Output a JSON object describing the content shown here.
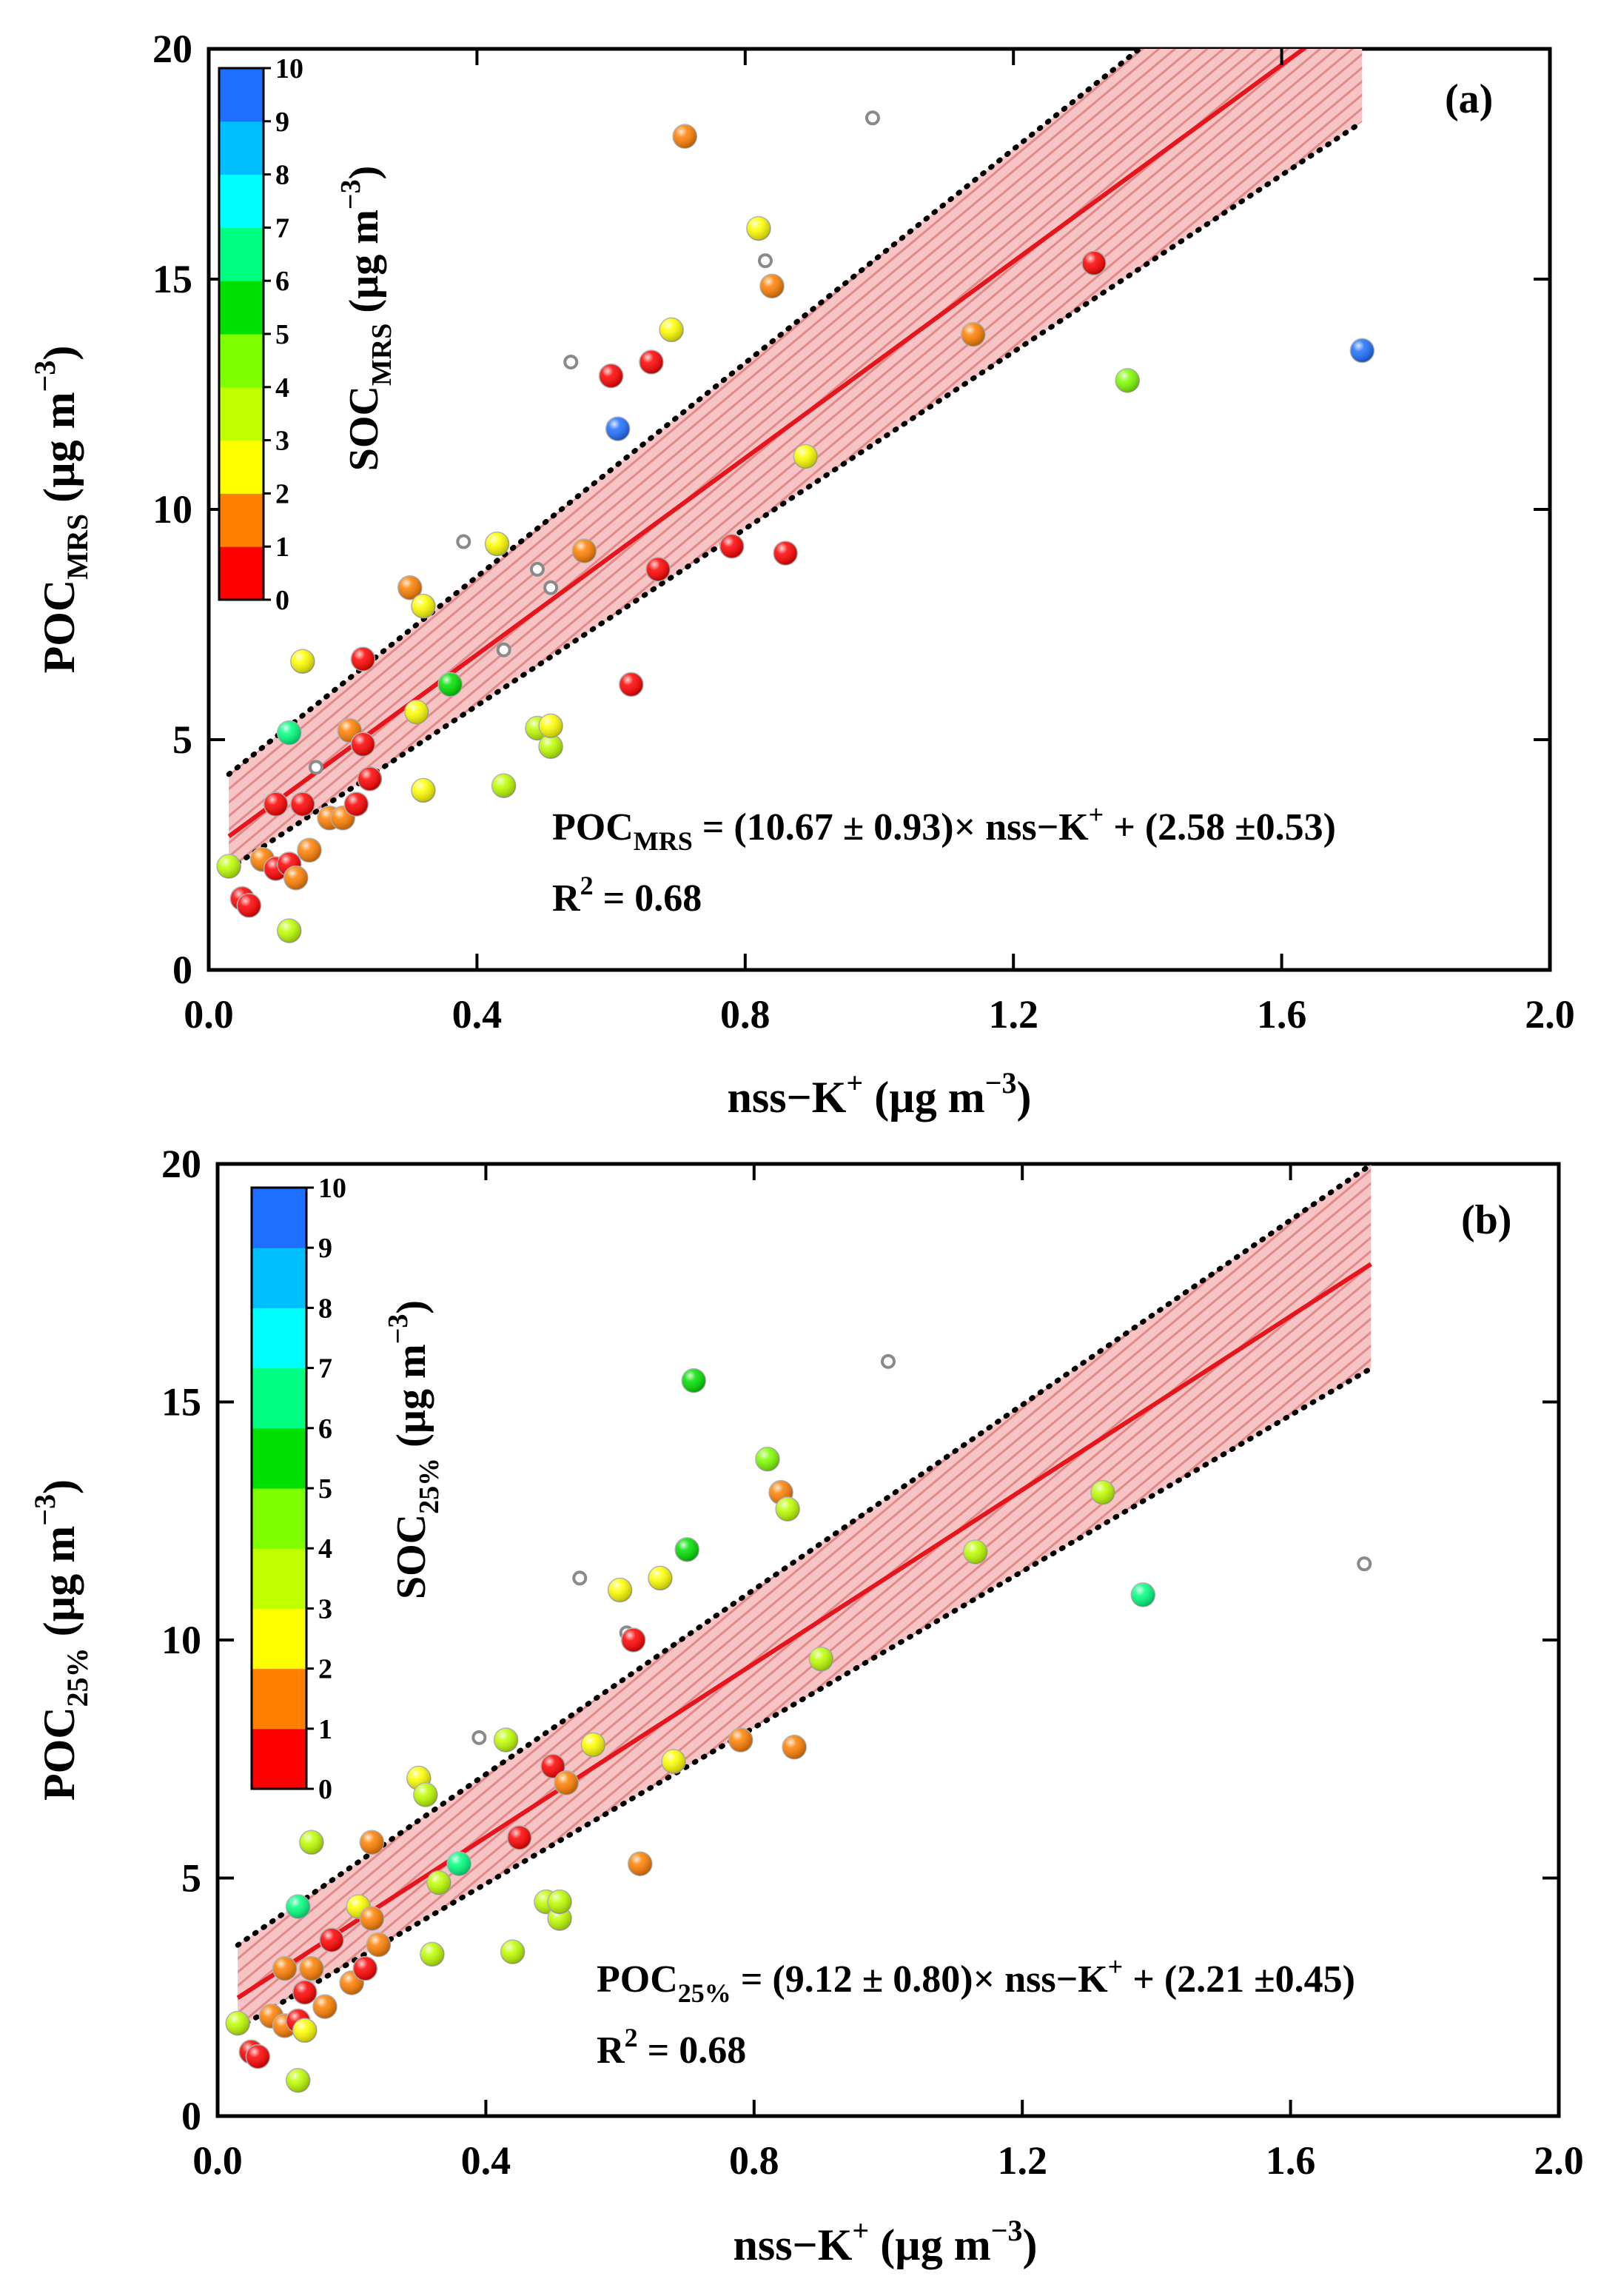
{
  "chart_data": [
    {
      "type": "scatter",
      "panel_label": "(a)",
      "title": "",
      "xlabel": "nss−K⁺ (µg m⁻³)",
      "xlabel_parts": {
        "main": "nss−K",
        "sup": "+",
        "unit": "(µg m",
        "unit_sup": "−3",
        "unit_end": ")"
      },
      "ylabel_parts": {
        "main": "POC",
        "sub": "MRS",
        "unit": "(µg m",
        "unit_sup": "−3",
        "unit_end": ")"
      },
      "xlim": [
        0,
        2.0
      ],
      "ylim": [
        0,
        20
      ],
      "xticks": [
        "0.0",
        "0.4",
        "0.8",
        "1.2",
        "1.6",
        "2.0"
      ],
      "yticks": [
        "0",
        "5",
        "10",
        "15",
        "20"
      ],
      "grid": false,
      "colorbar": {
        "label_main": "SOC",
        "label_sub": "MRS",
        "unit": "(µg m",
        "unit_sup": "−3",
        "unit_end": ")",
        "min": 0,
        "max": 10,
        "ticks": [
          "0",
          "1",
          "2",
          "3",
          "4",
          "5",
          "6",
          "7",
          "8",
          "9",
          "10"
        ],
        "colors": [
          "#ff0000",
          "#ff7f00",
          "#ffff00",
          "#bfff00",
          "#7fff00",
          "#00e000",
          "#00ff80",
          "#00ffff",
          "#00bfff",
          "#1e6fff",
          "#0000ff"
        ]
      },
      "fit": {
        "slope": 10.67,
        "intercept": 2.58,
        "x_range": [
          0.03,
          1.72
        ],
        "band_upper_intercept": 3.9,
        "band_upper_slope": 11.6,
        "band_lower_intercept": 1.9,
        "band_lower_slope": 9.6
      },
      "equation": {
        "lhs_main": "POC",
        "lhs_sub": "MRS",
        "rhs": " = (10.67 ± 0.93)× nss−K",
        "rhs_sup": "+",
        "rhs_end": " + (2.58 ±0.53)"
      },
      "r2": {
        "main": "R",
        "sup": "2",
        "rest": " = 0.68"
      },
      "points": [
        {
          "x": 0.03,
          "y": 2.25,
          "c": 3
        },
        {
          "x": 0.05,
          "y": 1.55,
          "c": 0.5
        },
        {
          "x": 0.06,
          "y": 1.4,
          "c": 0.5
        },
        {
          "x": 0.08,
          "y": 2.4,
          "c": 1
        },
        {
          "x": 0.1,
          "y": 2.2,
          "c": 0.5
        },
        {
          "x": 0.1,
          "y": 3.6,
          "c": 0.5
        },
        {
          "x": 0.12,
          "y": 2.3,
          "c": 0.5
        },
        {
          "x": 0.13,
          "y": 2.0,
          "c": 1.5
        },
        {
          "x": 0.12,
          "y": 0.85,
          "c": 3.5
        },
        {
          "x": 0.12,
          "y": 5.15,
          "c": 6.5
        },
        {
          "x": 0.14,
          "y": 3.6,
          "c": 0.5
        },
        {
          "x": 0.14,
          "y": 6.7,
          "c": 2.5
        },
        {
          "x": 0.15,
          "y": 2.6,
          "c": 1.5
        },
        {
          "x": 0.18,
          "y": 3.3,
          "c": 1.5
        },
        {
          "x": 0.2,
          "y": 3.3,
          "c": 1.5
        },
        {
          "x": 0.21,
          "y": 5.2,
          "c": 1.5
        },
        {
          "x": 0.22,
          "y": 3.6,
          "c": 0.5
        },
        {
          "x": 0.23,
          "y": 4.9,
          "c": 0.5
        },
        {
          "x": 0.23,
          "y": 6.75,
          "c": 0.5
        },
        {
          "x": 0.24,
          "y": 4.15,
          "c": 0.5
        },
        {
          "x": 0.3,
          "y": 8.3,
          "c": 1.5
        },
        {
          "x": 0.31,
          "y": 5.6,
          "c": 2.5
        },
        {
          "x": 0.32,
          "y": 7.9,
          "c": 2.5
        },
        {
          "x": 0.32,
          "y": 3.9,
          "c": 2.5
        },
        {
          "x": 0.36,
          "y": 6.2,
          "c": 5.5
        },
        {
          "x": 0.43,
          "y": 9.25,
          "c": 2.5
        },
        {
          "x": 0.44,
          "y": 4.0,
          "c": 3.5
        },
        {
          "x": 0.49,
          "y": 5.25,
          "c": 3.5
        },
        {
          "x": 0.51,
          "y": 4.85,
          "c": 3.5
        },
        {
          "x": 0.51,
          "y": 5.3,
          "c": 2.5
        },
        {
          "x": 0.56,
          "y": 9.1,
          "c": 1.5
        },
        {
          "x": 0.6,
          "y": 12.9,
          "c": 0.5
        },
        {
          "x": 0.61,
          "y": 11.75,
          "c": 9.5
        },
        {
          "x": 0.63,
          "y": 6.2,
          "c": 0.5
        },
        {
          "x": 0.66,
          "y": 13.2,
          "c": 0.5
        },
        {
          "x": 0.67,
          "y": 8.7,
          "c": 0.5
        },
        {
          "x": 0.69,
          "y": 13.9,
          "c": 2.5
        },
        {
          "x": 0.71,
          "y": 18.1,
          "c": 1.5
        },
        {
          "x": 0.78,
          "y": 9.2,
          "c": 0.5
        },
        {
          "x": 0.82,
          "y": 16.1,
          "c": 2.5
        },
        {
          "x": 0.84,
          "y": 14.85,
          "c": 1.5
        },
        {
          "x": 0.86,
          "y": 9.05,
          "c": 0.5
        },
        {
          "x": 0.89,
          "y": 11.15,
          "c": 2.5
        },
        {
          "x": 1.14,
          "y": 13.8,
          "c": 1.5
        },
        {
          "x": 1.32,
          "y": 15.35,
          "c": 0.5
        },
        {
          "x": 1.37,
          "y": 12.8,
          "c": 4.5
        },
        {
          "x": 1.72,
          "y": 13.45,
          "c": 9.0
        }
      ],
      "gray_points": [
        {
          "x": 0.16,
          "y": 4.4
        },
        {
          "x": 0.38,
          "y": 9.3
        },
        {
          "x": 0.44,
          "y": 6.95
        },
        {
          "x": 0.49,
          "y": 8.7
        },
        {
          "x": 0.51,
          "y": 8.3
        },
        {
          "x": 0.54,
          "y": 13.2
        },
        {
          "x": 0.61,
          "y": 11.8
        },
        {
          "x": 0.83,
          "y": 15.4
        },
        {
          "x": 0.99,
          "y": 18.5
        }
      ]
    },
    {
      "type": "scatter",
      "panel_label": "(b)",
      "title": "",
      "xlabel": "nss−K⁺ (µg m⁻³)",
      "xlabel_parts": {
        "main": "nss−K",
        "sup": "+",
        "unit": "(µg m",
        "unit_sup": "−3",
        "unit_end": ")"
      },
      "ylabel_parts": {
        "main": "POC",
        "sub": "25%",
        "unit": "(µg m",
        "unit_sup": "−3",
        "unit_end": ")"
      },
      "xlim": [
        0,
        2.0
      ],
      "ylim": [
        0,
        20
      ],
      "xticks": [
        "0.0",
        "0.4",
        "0.8",
        "1.2",
        "1.6",
        "2.0"
      ],
      "yticks": [
        "0",
        "5",
        "10",
        "15",
        "20"
      ],
      "grid": false,
      "colorbar": {
        "label_main": "SOC",
        "label_sub": "25%",
        "unit": "(µg m",
        "unit_sup": "−3",
        "unit_end": ")",
        "min": 0,
        "max": 10,
        "ticks": [
          "0",
          "1",
          "2",
          "3",
          "4",
          "5",
          "6",
          "7",
          "8",
          "9",
          "10"
        ],
        "colors": [
          "#ff0000",
          "#ff7f00",
          "#ffff00",
          "#bfff00",
          "#7fff00",
          "#00e000",
          "#00ff80",
          "#00ffff",
          "#00bfff",
          "#1e6fff",
          "#0000ff"
        ]
      },
      "fit": {
        "slope": 9.12,
        "intercept": 2.21,
        "x_range": [
          0.03,
          1.72
        ],
        "band_upper_intercept": 3.3,
        "band_upper_slope": 9.7,
        "band_lower_intercept": 1.6,
        "band_lower_slope": 8.2
      },
      "equation": {
        "lhs_main": "POC",
        "lhs_sub": "25%",
        "rhs": " = (9.12 ± 0.80)× nss−K",
        "rhs_sup": "+",
        "rhs_end": " + (2.21 ±0.45)"
      },
      "r2": {
        "main": "R",
        "sup": "2",
        "rest": " = 0.68"
      },
      "points": [
        {
          "x": 0.03,
          "y": 1.95,
          "c": 3
        },
        {
          "x": 0.05,
          "y": 1.35,
          "c": 0.5
        },
        {
          "x": 0.06,
          "y": 1.25,
          "c": 0.5
        },
        {
          "x": 0.08,
          "y": 2.1,
          "c": 1
        },
        {
          "x": 0.1,
          "y": 3.1,
          "c": 1.5
        },
        {
          "x": 0.1,
          "y": 1.9,
          "c": 1.5
        },
        {
          "x": 0.12,
          "y": 2.0,
          "c": 0.5
        },
        {
          "x": 0.12,
          "y": 0.75,
          "c": 3.5
        },
        {
          "x": 0.12,
          "y": 4.4,
          "c": 6.5
        },
        {
          "x": 0.13,
          "y": 1.8,
          "c": 2.5
        },
        {
          "x": 0.14,
          "y": 5.75,
          "c": 3.5
        },
        {
          "x": 0.14,
          "y": 3.1,
          "c": 1.5
        },
        {
          "x": 0.13,
          "y": 2.6,
          "c": 0.5
        },
        {
          "x": 0.16,
          "y": 2.3,
          "c": 1.5
        },
        {
          "x": 0.17,
          "y": 3.7,
          "c": 0.5
        },
        {
          "x": 0.2,
          "y": 2.8,
          "c": 1.5
        },
        {
          "x": 0.21,
          "y": 4.4,
          "c": 2.5
        },
        {
          "x": 0.22,
          "y": 3.1,
          "c": 0.5
        },
        {
          "x": 0.23,
          "y": 4.15,
          "c": 1.5
        },
        {
          "x": 0.23,
          "y": 5.75,
          "c": 1.5
        },
        {
          "x": 0.24,
          "y": 3.6,
          "c": 1.5
        },
        {
          "x": 0.3,
          "y": 7.1,
          "c": 2.5
        },
        {
          "x": 0.31,
          "y": 6.75,
          "c": 3.5
        },
        {
          "x": 0.32,
          "y": 3.4,
          "c": 3.5
        },
        {
          "x": 0.33,
          "y": 4.9,
          "c": 3.5
        },
        {
          "x": 0.36,
          "y": 5.3,
          "c": 6.5
        },
        {
          "x": 0.43,
          "y": 7.9,
          "c": 3.5
        },
        {
          "x": 0.44,
          "y": 3.45,
          "c": 3.5
        },
        {
          "x": 0.45,
          "y": 5.85,
          "c": 0.5
        },
        {
          "x": 0.49,
          "y": 4.5,
          "c": 3.5
        },
        {
          "x": 0.5,
          "y": 7.35,
          "c": 0.5
        },
        {
          "x": 0.51,
          "y": 4.15,
          "c": 3.5
        },
        {
          "x": 0.51,
          "y": 4.5,
          "c": 3.5
        },
        {
          "x": 0.52,
          "y": 7.0,
          "c": 1.5
        },
        {
          "x": 0.56,
          "y": 7.8,
          "c": 2.5
        },
        {
          "x": 0.6,
          "y": 11.05,
          "c": 2.5
        },
        {
          "x": 0.62,
          "y": 10.0,
          "c": 0.5
        },
        {
          "x": 0.63,
          "y": 5.3,
          "c": 1.5
        },
        {
          "x": 0.66,
          "y": 11.3,
          "c": 2.5
        },
        {
          "x": 0.68,
          "y": 7.45,
          "c": 2.5
        },
        {
          "x": 0.7,
          "y": 11.9,
          "c": 5.5
        },
        {
          "x": 0.71,
          "y": 15.45,
          "c": 5.0
        },
        {
          "x": 0.78,
          "y": 7.9,
          "c": 1.5
        },
        {
          "x": 0.82,
          "y": 13.8,
          "c": 4.5
        },
        {
          "x": 0.84,
          "y": 13.1,
          "c": 1.5
        },
        {
          "x": 0.85,
          "y": 12.75,
          "c": 3.5
        },
        {
          "x": 0.86,
          "y": 7.75,
          "c": 1.5
        },
        {
          "x": 0.9,
          "y": 9.6,
          "c": 3.5
        },
        {
          "x": 1.13,
          "y": 11.85,
          "c": 3.5
        },
        {
          "x": 1.32,
          "y": 13.1,
          "c": 3.5
        },
        {
          "x": 1.38,
          "y": 10.95,
          "c": 6.5
        }
      ],
      "gray_points": [
        {
          "x": 0.39,
          "y": 7.95
        },
        {
          "x": 0.54,
          "y": 11.3
        },
        {
          "x": 0.61,
          "y": 10.15
        },
        {
          "x": 1.0,
          "y": 15.85
        },
        {
          "x": 1.71,
          "y": 11.6
        }
      ]
    }
  ]
}
